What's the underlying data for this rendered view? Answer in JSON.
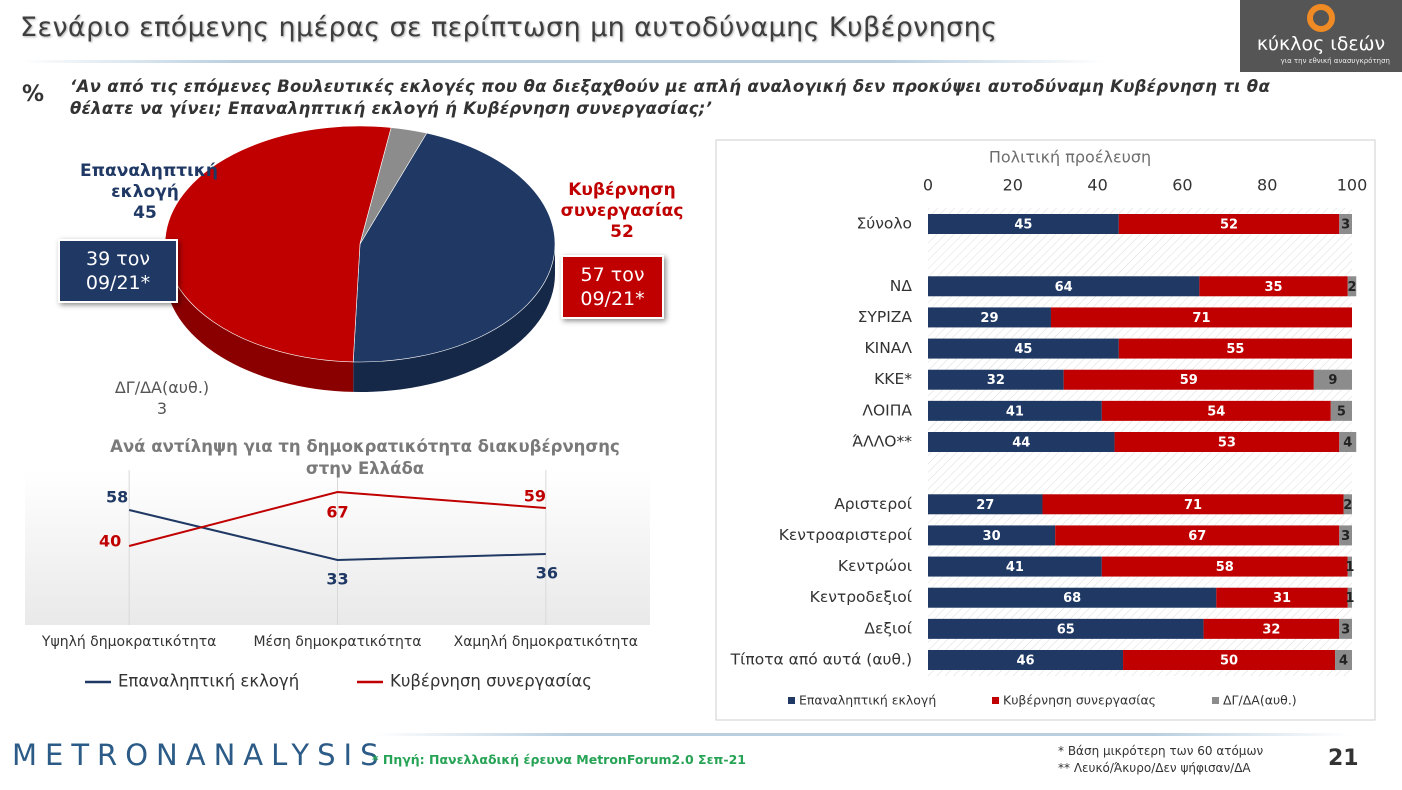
{
  "header": {
    "title": "Σενάριο επόμενης ημέρας σε περίπτωση μη αυτοδύναμης Κυβέρνησης",
    "unit": "%",
    "question": "‘Αν από τις επόμενες Βουλευτικές εκλογές που θα διεξαχθούν με απλή αναλογική δεν προκύψει αυτοδύναμη Κυβέρνηση τι θα θέλατε να γίνει; Επαναληπτική εκλογή ή Κυβέρνηση συνεργασίας;’"
  },
  "logo": {
    "name": "κύκλος ιδεών",
    "tagline": "για την εθνική ανασυγκρότηση"
  },
  "chart_data": [
    {
      "type": "pie",
      "categories": [
        "Επαναληπτική εκλογή",
        "Κυβέρνηση συνεργασίας",
        "ΔΓ/ΔΑ(αυθ.)"
      ],
      "values": [
        45,
        52,
        3
      ],
      "colors": [
        "#1f3864",
        "#c00000",
        "#8c8c8c"
      ],
      "annotations": [
        "39 τον 09/21*",
        "57 τον 09/21*"
      ]
    },
    {
      "type": "line",
      "title": "Ανά αντίληψη για τη δημοκρατικότητα διακυβέρνησης στην Ελλάδα",
      "categories": [
        "Υψηλή δημοκρατικότητα",
        "Μέση δημοκρατικότητα",
        "Χαμηλή δημοκρατικότητα"
      ],
      "series": [
        {
          "name": "Επαναληπτική εκλογή",
          "color": "#1f3864",
          "values": [
            58,
            33,
            36
          ]
        },
        {
          "name": "Κυβέρνηση συνεργασίας",
          "color": "#c00000",
          "values": [
            40,
            67,
            59
          ]
        }
      ],
      "grid": true,
      "legend": "bottom"
    },
    {
      "type": "bar",
      "orientation": "horizontal",
      "stacked": true,
      "title": "Πολιτική προέλευση",
      "categories": [
        "Σύνολο",
        null,
        "ΝΔ",
        "ΣΥΡΙΖΑ",
        "ΚΙΝΑΛ",
        "ΚΚΕ*",
        "ΛΟΙΠΑ",
        "ΆΛΛΟ**",
        null,
        "Αριστεροί",
        "Κεντροαριστεροί",
        "Κεντρώοι",
        "Κεντροδεξιοί",
        "Δεξιοί",
        "Τίποτα από αυτά (αυθ.)"
      ],
      "series": [
        {
          "name": "Επαναληπτική εκλογή",
          "color": "#1f3864",
          "values": [
            45,
            null,
            64,
            29,
            45,
            32,
            41,
            44,
            null,
            27,
            30,
            41,
            68,
            65,
            46
          ]
        },
        {
          "name": "Κυβέρνηση συνεργασίας",
          "color": "#c00000",
          "values": [
            52,
            null,
            35,
            71,
            55,
            59,
            54,
            53,
            null,
            71,
            67,
            58,
            31,
            32,
            50
          ]
        },
        {
          "name": "ΔΓ/ΔΑ(αυθ.)",
          "color": "#8c8c8c",
          "values": [
            3,
            null,
            2,
            null,
            null,
            9,
            5,
            4,
            null,
            2,
            3,
            1,
            1,
            3,
            4
          ]
        }
      ],
      "xlim": [
        0,
        100
      ],
      "xticks": [
        0,
        20,
        40,
        60,
        80,
        100
      ],
      "legend": "bottom"
    }
  ],
  "footer": {
    "brand": "METRONANALYSIS",
    "source": "* Πηγή: Πανελλαδική έρευνα MetronForum2.0 Σεπ-21",
    "notes": [
      "* Βάση μικρότερη των 60 ατόμων",
      "** Λευκό/Άκυρο/Δεν ψήφισαν/ΔΑ"
    ],
    "page": 21
  }
}
